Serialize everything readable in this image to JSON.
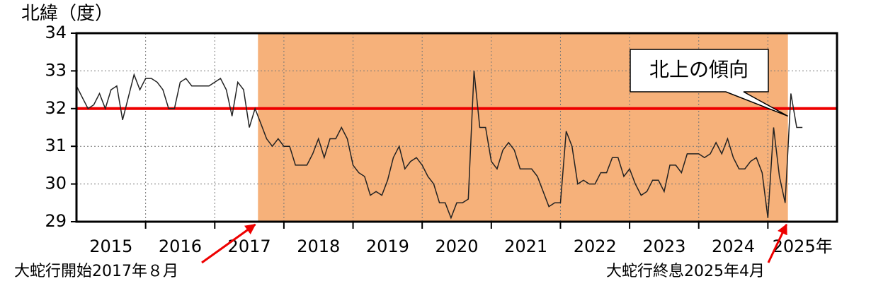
{
  "chart_data": {
    "type": "line",
    "y_label": "北緯（度）",
    "xlim": [
      2015,
      2026
    ],
    "ylim": [
      29,
      34
    ],
    "yticks": [
      29,
      30,
      31,
      32,
      33,
      34
    ],
    "xticks": [
      {
        "value": 2015.5,
        "label": "2015"
      },
      {
        "value": 2016.5,
        "label": "2016"
      },
      {
        "value": 2017.5,
        "label": "2017"
      },
      {
        "value": 2018.5,
        "label": "2018"
      },
      {
        "value": 2019.5,
        "label": "2019"
      },
      {
        "value": 2020.5,
        "label": "2020"
      },
      {
        "value": 2021.5,
        "label": "2021"
      },
      {
        "value": 2022.5,
        "label": "2022"
      },
      {
        "value": 2023.5,
        "label": "2023"
      },
      {
        "value": 2024.5,
        "label": "2024"
      },
      {
        "value": 2025.5,
        "label": "2025年"
      }
    ],
    "xgrid": [
      2016,
      2017,
      2018,
      2019,
      2020,
      2021,
      2022,
      2023,
      2024,
      2025
    ],
    "grid": true,
    "shaded_region": {
      "x": [
        2017.625,
        2025.29
      ],
      "color": "#f6b17a"
    },
    "reference_line": {
      "y": 32,
      "color": "#ee0000"
    },
    "series": [
      {
        "name": "北緯",
        "color": "#222222",
        "x": [
          2015.0,
          2015.083,
          2015.167,
          2015.25,
          2015.333,
          2015.417,
          2015.5,
          2015.583,
          2015.667,
          2015.75,
          2015.833,
          2015.917,
          2016.0,
          2016.083,
          2016.167,
          2016.25,
          2016.333,
          2016.417,
          2016.5,
          2016.583,
          2016.667,
          2016.75,
          2016.833,
          2016.917,
          2017.0,
          2017.083,
          2017.167,
          2017.25,
          2017.333,
          2017.417,
          2017.5,
          2017.583,
          2017.667,
          2017.75,
          2017.833,
          2017.917,
          2018.0,
          2018.083,
          2018.167,
          2018.25,
          2018.333,
          2018.417,
          2018.5,
          2018.583,
          2018.667,
          2018.75,
          2018.833,
          2018.917,
          2019.0,
          2019.083,
          2019.167,
          2019.25,
          2019.333,
          2019.417,
          2019.5,
          2019.583,
          2019.667,
          2019.75,
          2019.833,
          2019.917,
          2020.0,
          2020.083,
          2020.167,
          2020.25,
          2020.333,
          2020.417,
          2020.5,
          2020.583,
          2020.667,
          2020.75,
          2020.833,
          2020.917,
          2021.0,
          2021.083,
          2021.167,
          2021.25,
          2021.333,
          2021.417,
          2021.5,
          2021.583,
          2021.667,
          2021.75,
          2021.833,
          2021.917,
          2022.0,
          2022.083,
          2022.167,
          2022.25,
          2022.333,
          2022.417,
          2022.5,
          2022.583,
          2022.667,
          2022.75,
          2022.833,
          2022.917,
          2023.0,
          2023.083,
          2023.167,
          2023.25,
          2023.333,
          2023.417,
          2023.5,
          2023.583,
          2023.667,
          2023.75,
          2023.833,
          2023.917,
          2024.0,
          2024.083,
          2024.167,
          2024.25,
          2024.333,
          2024.417,
          2024.5,
          2024.583,
          2024.667,
          2024.75,
          2024.833,
          2024.917,
          2025.0,
          2025.083,
          2025.167,
          2025.25,
          2025.333,
          2025.417,
          2025.5
        ],
        "values": [
          32.6,
          32.3,
          32.0,
          32.1,
          32.4,
          32.0,
          32.5,
          32.6,
          31.7,
          32.3,
          32.9,
          32.5,
          32.8,
          32.8,
          32.7,
          32.5,
          32.0,
          32.0,
          32.7,
          32.8,
          32.6,
          32.6,
          32.6,
          32.6,
          32.7,
          32.8,
          32.5,
          31.8,
          32.7,
          32.5,
          31.5,
          32.0,
          31.6,
          31.2,
          31.0,
          31.2,
          31.0,
          31.0,
          30.5,
          30.5,
          30.5,
          30.8,
          31.2,
          30.7,
          31.2,
          31.2,
          31.5,
          31.2,
          30.5,
          30.3,
          30.2,
          29.7,
          29.8,
          29.7,
          30.1,
          30.7,
          31.0,
          30.4,
          30.6,
          30.7,
          30.5,
          30.2,
          30.0,
          29.5,
          29.5,
          29.1,
          29.5,
          29.5,
          29.6,
          33.0,
          31.5,
          31.5,
          30.6,
          30.4,
          30.9,
          31.1,
          30.9,
          30.4,
          30.4,
          30.4,
          30.2,
          29.8,
          29.4,
          29.5,
          29.5,
          31.4,
          31.0,
          30.0,
          30.1,
          30.0,
          30.0,
          30.3,
          30.3,
          30.7,
          30.7,
          30.2,
          30.4,
          30.0,
          29.7,
          29.8,
          30.1,
          30.1,
          29.8,
          30.5,
          30.5,
          30.3,
          30.8,
          30.8,
          30.8,
          30.7,
          30.8,
          31.1,
          30.8,
          31.2,
          30.7,
          30.4,
          30.4,
          30.6,
          30.7,
          30.3,
          29.1,
          31.5,
          30.2,
          29.5,
          32.4,
          31.5,
          31.5
        ]
      }
    ],
    "annotations": [
      {
        "text": "大蛇行開始2017年８月",
        "x": 2017.625,
        "color": "#ee0000"
      },
      {
        "text": "大蛇行終息2025年4月",
        "x": 2025.29,
        "color": "#ee0000"
      },
      {
        "text": "北上の傾向",
        "x": 2025.29,
        "y": 31.8
      }
    ]
  }
}
